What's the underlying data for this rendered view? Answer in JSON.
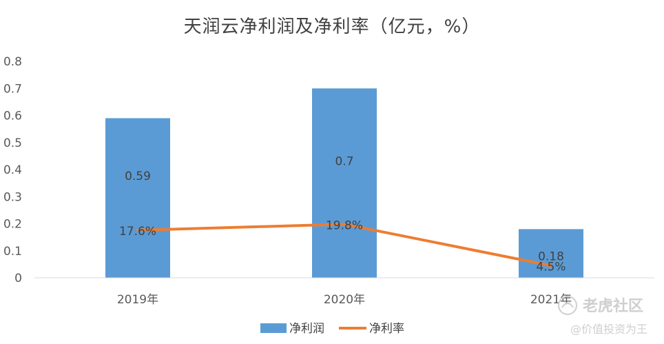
{
  "chart_data": {
    "type": "bar",
    "title": "天润云净利润及净利率（亿元，%）",
    "categories": [
      "2019年",
      "2020年",
      "2021年"
    ],
    "ylim": [
      0,
      0.8
    ],
    "yticks": [
      "0",
      "0.1",
      "0.2",
      "0.3",
      "0.4",
      "0.5",
      "0.6",
      "0.7",
      "0.8"
    ],
    "grid": false,
    "legend_position": "bottom",
    "series": [
      {
        "name": "净利润",
        "type": "bar",
        "color": "#5b9bd5",
        "values": [
          0.59,
          0.7,
          0.18
        ],
        "labels": [
          "0.59",
          "0.7",
          "0.18"
        ]
      },
      {
        "name": "净利率",
        "type": "line",
        "color": "#ed7d31",
        "values": [
          17.6,
          19.8,
          4.5
        ],
        "labels": [
          "17.6%",
          "19.8%",
          "4.5%"
        ]
      }
    ]
  },
  "watermark": {
    "brand": "老虎社区",
    "author": "@价值投资为王"
  }
}
